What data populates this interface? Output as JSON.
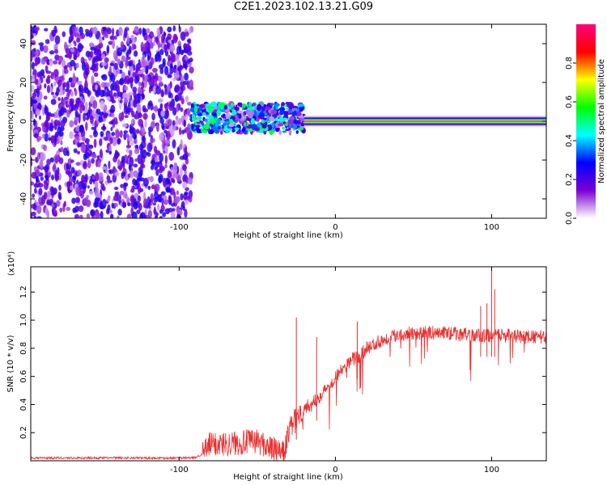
{
  "title": "C2E1.2023.102.13.21.G09",
  "chart_data": [
    {
      "type": "heatmap",
      "xlabel": "Height of straight line (km)",
      "ylabel": "Frequency (Hz)",
      "xlim": [
        -195,
        135
      ],
      "ylim": [
        -50,
        50
      ],
      "x_ticks": [
        -100,
        0,
        100
      ],
      "y_ticks": [
        -40,
        -20,
        0,
        20,
        40
      ],
      "colorbar": {
        "label": "Normalized spectral amplitude",
        "range": [
          0.0,
          1.0
        ],
        "ticks": [
          0.0,
          0.2,
          0.4,
          0.6,
          0.8
        ],
        "colormap": [
          "#ffffff",
          "#7b00d4",
          "#0000ff",
          "#00ffff",
          "#00ff00",
          "#ffff00",
          "#ff0000",
          "#ff0080"
        ]
      },
      "regions": [
        {
          "x_range": [
            -195,
            -92
          ],
          "description_amplitude": 0.15,
          "freq_spread": [
            -50,
            48
          ]
        },
        {
          "x_range": [
            -92,
            -20
          ],
          "center_freq": 0,
          "spread": [
            -6,
            9
          ],
          "peak_amplitude": 0.5
        },
        {
          "x_range": [
            -20,
            135
          ],
          "center_freq": 0,
          "spread": [
            -3,
            3
          ],
          "peak_amplitude": 0.9
        }
      ]
    },
    {
      "type": "line",
      "xlabel": "Height of straight line (km)",
      "ylabel": "SNR (10 * v/v)",
      "y_multiplier": "(x10⁴)",
      "xlim": [
        -195,
        135
      ],
      "ylim": [
        0.0,
        1.38
      ],
      "x_ticks": [
        -100,
        0,
        100
      ],
      "y_ticks": [
        0.2,
        0.4,
        0.6,
        0.8,
        1.0,
        1.2
      ],
      "series_color": "#e83030",
      "series": [
        {
          "x": [
            -195,
            -180,
            -160,
            -140,
            -120,
            -100,
            -90,
            -85,
            -80,
            -70,
            -60,
            -50,
            -40,
            -33,
            -30,
            -25,
            -20,
            -15,
            -10,
            -5,
            0,
            5,
            10,
            15,
            20,
            30,
            40,
            50,
            60,
            70,
            80,
            90,
            100,
            110,
            120,
            135
          ],
          "y": [
            0.02,
            0.02,
            0.02,
            0.02,
            0.02,
            0.02,
            0.02,
            0.05,
            0.12,
            0.12,
            0.13,
            0.14,
            0.08,
            0.05,
            0.2,
            0.3,
            0.38,
            0.4,
            0.46,
            0.52,
            0.6,
            0.65,
            0.72,
            0.74,
            0.8,
            0.86,
            0.9,
            0.91,
            0.91,
            0.91,
            0.9,
            0.89,
            0.89,
            0.89,
            0.88,
            0.88
          ]
        }
      ],
      "spikes": [
        {
          "x": -25,
          "y": 1.02
        },
        {
          "x": -12,
          "y": 0.88
        },
        {
          "x": 14,
          "y": 0.99
        },
        {
          "x": 93,
          "y": 1.1
        },
        {
          "x": 97,
          "y": 1.12
        },
        {
          "x": 100,
          "y": 1.36
        },
        {
          "x": 102,
          "y": 1.22
        }
      ]
    }
  ]
}
